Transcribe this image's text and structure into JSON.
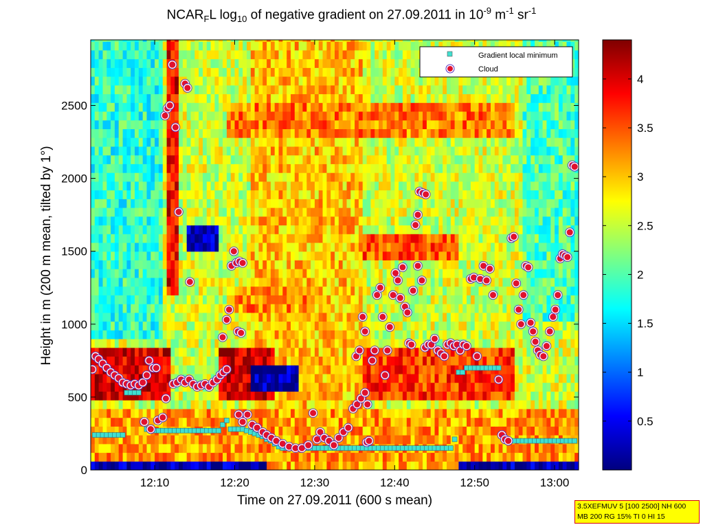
{
  "title": {
    "part1": "NCAR",
    "sub1": "F",
    "part2": "L log",
    "sub2": "10",
    "part3": " of negative gradient on 27.09.2011 in 10",
    "sup1": "-9",
    "part4": " m",
    "sup2": "-1",
    "part5": " sr",
    "sup3": "-1"
  },
  "info_box": {
    "line1": "3.5XEFMUV 5 [100 2500] NH 600",
    "line2": "MB 200 RG 15% TI 0 HI 15"
  },
  "chart_data": {
    "type": "heatmap",
    "xlabel": "Time on 27.09.2011 (600 s mean)",
    "ylabel": "Height in m (200 m mean, tilted by 1°)",
    "x_range_minutes": [
      722,
      783
    ],
    "ylim": [
      0,
      2950
    ],
    "x_ticks": [
      {
        "t": 730,
        "label": "12:10"
      },
      {
        "t": 740,
        "label": "12:20"
      },
      {
        "t": 750,
        "label": "12:30"
      },
      {
        "t": 760,
        "label": "12:40"
      },
      {
        "t": 770,
        "label": "12:50"
      },
      {
        "t": 780,
        "label": "13:00"
      }
    ],
    "y_ticks": [
      0,
      500,
      1000,
      1500,
      2000,
      2500
    ],
    "colorbar": {
      "range": [
        0,
        4.4
      ],
      "ticks": [
        0.5,
        1,
        1.5,
        2,
        2.5,
        3,
        3.5,
        4
      ],
      "colormap": "jet"
    },
    "legend": {
      "position": "top-right",
      "entries": [
        {
          "label": "Gradient local minimum",
          "marker": "square",
          "color": "#40e0d0"
        },
        {
          "label": "Cloud",
          "marker": "circle",
          "color": "#e0102e"
        }
      ]
    },
    "gradient_local_minimum": [
      {
        "t": 722.5,
        "h": 240
      },
      {
        "t": 723,
        "h": 240
      },
      {
        "t": 723.5,
        "h": 240
      },
      {
        "t": 724,
        "h": 240
      },
      {
        "t": 724.5,
        "h": 240
      },
      {
        "t": 725,
        "h": 240
      },
      {
        "t": 725.5,
        "h": 240
      },
      {
        "t": 726,
        "h": 240
      },
      {
        "t": 726.5,
        "h": 530
      },
      {
        "t": 727,
        "h": 530
      },
      {
        "t": 727.5,
        "h": 530
      },
      {
        "t": 728,
        "h": 530
      },
      {
        "t": 728.5,
        "h": 330
      },
      {
        "t": 729,
        "h": 280
      },
      {
        "t": 729.5,
        "h": 270
      },
      {
        "t": 730,
        "h": 270
      },
      {
        "t": 730.5,
        "h": 270
      },
      {
        "t": 731,
        "h": 270
      },
      {
        "t": 731.5,
        "h": 270
      },
      {
        "t": 732,
        "h": 270
      },
      {
        "t": 732.5,
        "h": 270
      },
      {
        "t": 733,
        "h": 270
      },
      {
        "t": 733.5,
        "h": 270
      },
      {
        "t": 734,
        "h": 270
      },
      {
        "t": 734.5,
        "h": 270
      },
      {
        "t": 735,
        "h": 270
      },
      {
        "t": 735.5,
        "h": 270
      },
      {
        "t": 736,
        "h": 270
      },
      {
        "t": 736.5,
        "h": 270
      },
      {
        "t": 737,
        "h": 270
      },
      {
        "t": 737.5,
        "h": 270
      },
      {
        "t": 738,
        "h": 270
      },
      {
        "t": 738.5,
        "h": 310
      },
      {
        "t": 739,
        "h": 340
      },
      {
        "t": 739.5,
        "h": 280
      },
      {
        "t": 740,
        "h": 280
      },
      {
        "t": 740.5,
        "h": 280
      },
      {
        "t": 741,
        "h": 280
      },
      {
        "t": 741.5,
        "h": 270
      },
      {
        "t": 742,
        "h": 260
      },
      {
        "t": 742.5,
        "h": 250
      },
      {
        "t": 743,
        "h": 240
      },
      {
        "t": 743.5,
        "h": 230
      },
      {
        "t": 744,
        "h": 210
      },
      {
        "t": 744.5,
        "h": 200
      },
      {
        "t": 745,
        "h": 180
      },
      {
        "t": 745.5,
        "h": 160
      },
      {
        "t": 746,
        "h": 150
      },
      {
        "t": 746.5,
        "h": 150
      },
      {
        "t": 747,
        "h": 150
      },
      {
        "t": 747.5,
        "h": 150
      },
      {
        "t": 748,
        "h": 150
      },
      {
        "t": 748.5,
        "h": 150
      },
      {
        "t": 749,
        "h": 150
      },
      {
        "t": 749.5,
        "h": 150
      },
      {
        "t": 750,
        "h": 150
      },
      {
        "t": 750.5,
        "h": 150
      },
      {
        "t": 751,
        "h": 150
      },
      {
        "t": 751.5,
        "h": 150
      },
      {
        "t": 752,
        "h": 150
      },
      {
        "t": 752.5,
        "h": 150
      },
      {
        "t": 753,
        "h": 150
      },
      {
        "t": 753.5,
        "h": 150
      },
      {
        "t": 754,
        "h": 150
      },
      {
        "t": 754.5,
        "h": 150
      },
      {
        "t": 755,
        "h": 150
      },
      {
        "t": 755.5,
        "h": 150
      },
      {
        "t": 756,
        "h": 150
      },
      {
        "t": 756.5,
        "h": 150
      },
      {
        "t": 757,
        "h": 150
      },
      {
        "t": 757.5,
        "h": 150
      },
      {
        "t": 758,
        "h": 150
      },
      {
        "t": 758.5,
        "h": 150
      },
      {
        "t": 759,
        "h": 150
      },
      {
        "t": 759.5,
        "h": 150
      },
      {
        "t": 760,
        "h": 150
      },
      {
        "t": 760.5,
        "h": 150
      },
      {
        "t": 761,
        "h": 150
      },
      {
        "t": 761.5,
        "h": 150
      },
      {
        "t": 762,
        "h": 150
      },
      {
        "t": 762.5,
        "h": 150
      },
      {
        "t": 763,
        "h": 150
      },
      {
        "t": 763.5,
        "h": 150
      },
      {
        "t": 764,
        "h": 150
      },
      {
        "t": 764.5,
        "h": 150
      },
      {
        "t": 765,
        "h": 150
      },
      {
        "t": 765.5,
        "h": 150
      },
      {
        "t": 766,
        "h": 150
      },
      {
        "t": 766.5,
        "h": 150
      },
      {
        "t": 767,
        "h": 150
      },
      {
        "t": 767.5,
        "h": 210
      },
      {
        "t": 768,
        "h": 670
      },
      {
        "t": 768.5,
        "h": 670
      },
      {
        "t": 769,
        "h": 700
      },
      {
        "t": 769.5,
        "h": 700
      },
      {
        "t": 770,
        "h": 700
      },
      {
        "t": 770.5,
        "h": 700
      },
      {
        "t": 771,
        "h": 700
      },
      {
        "t": 771.5,
        "h": 700
      },
      {
        "t": 772,
        "h": 700
      },
      {
        "t": 772.5,
        "h": 700
      },
      {
        "t": 773,
        "h": 700
      },
      {
        "t": 773.5,
        "h": 230
      },
      {
        "t": 774,
        "h": 200
      },
      {
        "t": 774.5,
        "h": 200
      },
      {
        "t": 775,
        "h": 200
      },
      {
        "t": 775.5,
        "h": 200
      },
      {
        "t": 776,
        "h": 200
      },
      {
        "t": 776.5,
        "h": 200
      },
      {
        "t": 777,
        "h": 200
      },
      {
        "t": 777.5,
        "h": 200
      },
      {
        "t": 778,
        "h": 200
      },
      {
        "t": 778.5,
        "h": 200
      },
      {
        "t": 779,
        "h": 200
      },
      {
        "t": 779.5,
        "h": 200
      },
      {
        "t": 780,
        "h": 200
      },
      {
        "t": 780.5,
        "h": 200
      },
      {
        "t": 781,
        "h": 200
      },
      {
        "t": 781.5,
        "h": 200
      },
      {
        "t": 782,
        "h": 200
      },
      {
        "t": 782.5,
        "h": 200
      }
    ],
    "cloud": [
      {
        "t": 722.2,
        "h": 690
      },
      {
        "t": 722.6,
        "h": 780
      },
      {
        "t": 723,
        "h": 760
      },
      {
        "t": 723.5,
        "h": 730
      },
      {
        "t": 724,
        "h": 700
      },
      {
        "t": 724.5,
        "h": 670
      },
      {
        "t": 725,
        "h": 650
      },
      {
        "t": 725.5,
        "h": 630
      },
      {
        "t": 726,
        "h": 600
      },
      {
        "t": 726.5,
        "h": 590
      },
      {
        "t": 727,
        "h": 580
      },
      {
        "t": 727.5,
        "h": 590
      },
      {
        "t": 728,
        "h": 580
      },
      {
        "t": 728.5,
        "h": 600
      },
      {
        "t": 729,
        "h": 650
      },
      {
        "t": 729.3,
        "h": 750
      },
      {
        "t": 729.8,
        "h": 700
      },
      {
        "t": 730.2,
        "h": 700
      },
      {
        "t": 728.7,
        "h": 330
      },
      {
        "t": 729.5,
        "h": 280
      },
      {
        "t": 730.4,
        "h": 340
      },
      {
        "t": 731,
        "h": 360
      },
      {
        "t": 731.4,
        "h": 490
      },
      {
        "t": 731.3,
        "h": 2430
      },
      {
        "t": 731.6,
        "h": 2480
      },
      {
        "t": 731.9,
        "h": 2500
      },
      {
        "t": 732.2,
        "h": 2780
      },
      {
        "t": 732.6,
        "h": 2350
      },
      {
        "t": 733,
        "h": 1770
      },
      {
        "t": 733.8,
        "h": 2650
      },
      {
        "t": 734.1,
        "h": 2620
      },
      {
        "t": 734.4,
        "h": 1290
      },
      {
        "t": 732.3,
        "h": 590
      },
      {
        "t": 732.8,
        "h": 600
      },
      {
        "t": 733.3,
        "h": 620
      },
      {
        "t": 733.8,
        "h": 600
      },
      {
        "t": 734.3,
        "h": 620
      },
      {
        "t": 734.8,
        "h": 590
      },
      {
        "t": 735.3,
        "h": 570
      },
      {
        "t": 735.8,
        "h": 580
      },
      {
        "t": 736.3,
        "h": 590
      },
      {
        "t": 736.8,
        "h": 570
      },
      {
        "t": 737.3,
        "h": 600
      },
      {
        "t": 737.8,
        "h": 620
      },
      {
        "t": 738.2,
        "h": 650
      },
      {
        "t": 738.6,
        "h": 670
      },
      {
        "t": 739,
        "h": 690
      },
      {
        "t": 738.5,
        "h": 910
      },
      {
        "t": 739,
        "h": 1030
      },
      {
        "t": 739.3,
        "h": 1100
      },
      {
        "t": 739.6,
        "h": 1400
      },
      {
        "t": 739.9,
        "h": 1500
      },
      {
        "t": 740.2,
        "h": 1420
      },
      {
        "t": 740.6,
        "h": 1430
      },
      {
        "t": 741,
        "h": 1420
      },
      {
        "t": 740.4,
        "h": 950
      },
      {
        "t": 740.8,
        "h": 940
      },
      {
        "t": 740.5,
        "h": 380
      },
      {
        "t": 741,
        "h": 330
      },
      {
        "t": 741.6,
        "h": 380
      },
      {
        "t": 742.2,
        "h": 310
      },
      {
        "t": 742.8,
        "h": 290
      },
      {
        "t": 743.5,
        "h": 260
      },
      {
        "t": 744,
        "h": 240
      },
      {
        "t": 744.6,
        "h": 220
      },
      {
        "t": 745.2,
        "h": 200
      },
      {
        "t": 746,
        "h": 180
      },
      {
        "t": 746.8,
        "h": 160
      },
      {
        "t": 747.6,
        "h": 150
      },
      {
        "t": 748.4,
        "h": 150
      },
      {
        "t": 749.2,
        "h": 170
      },
      {
        "t": 749.8,
        "h": 390
      },
      {
        "t": 750.3,
        "h": 210
      },
      {
        "t": 750.7,
        "h": 260
      },
      {
        "t": 751.2,
        "h": 220
      },
      {
        "t": 751.8,
        "h": 200
      },
      {
        "t": 752.4,
        "h": 170
      },
      {
        "t": 753,
        "h": 220
      },
      {
        "t": 753.6,
        "h": 260
      },
      {
        "t": 754.2,
        "h": 290
      },
      {
        "t": 754.8,
        "h": 420
      },
      {
        "t": 755.3,
        "h": 450
      },
      {
        "t": 755.8,
        "h": 490
      },
      {
        "t": 756.3,
        "h": 530
      },
      {
        "t": 756.6,
        "h": 450
      },
      {
        "t": 755.2,
        "h": 780
      },
      {
        "t": 755.6,
        "h": 820
      },
      {
        "t": 756,
        "h": 1050
      },
      {
        "t": 756.3,
        "h": 950
      },
      {
        "t": 756.5,
        "h": 190
      },
      {
        "t": 756.8,
        "h": 200
      },
      {
        "t": 757.2,
        "h": 750
      },
      {
        "t": 757.5,
        "h": 820
      },
      {
        "t": 757.8,
        "h": 1200
      },
      {
        "t": 758.2,
        "h": 1250
      },
      {
        "t": 758.5,
        "h": 1050
      },
      {
        "t": 758.8,
        "h": 650
      },
      {
        "t": 759.1,
        "h": 820
      },
      {
        "t": 759.4,
        "h": 980
      },
      {
        "t": 759.8,
        "h": 1200
      },
      {
        "t": 760.1,
        "h": 1350
      },
      {
        "t": 760.4,
        "h": 1300
      },
      {
        "t": 760.7,
        "h": 1180
      },
      {
        "t": 761,
        "h": 1390
      },
      {
        "t": 761.3,
        "h": 1120
      },
      {
        "t": 761.6,
        "h": 1080
      },
      {
        "t": 761.8,
        "h": 870
      },
      {
        "t": 762.1,
        "h": 860
      },
      {
        "t": 762.3,
        "h": 1230
      },
      {
        "t": 762.6,
        "h": 1680
      },
      {
        "t": 762.9,
        "h": 1750
      },
      {
        "t": 763.1,
        "h": 1910
      },
      {
        "t": 763.5,
        "h": 1900
      },
      {
        "t": 763.9,
        "h": 1890
      },
      {
        "t": 762.9,
        "h": 1400
      },
      {
        "t": 763.4,
        "h": 1300
      },
      {
        "t": 763.8,
        "h": 840
      },
      {
        "t": 764.2,
        "h": 860
      },
      {
        "t": 764.6,
        "h": 860
      },
      {
        "t": 765,
        "h": 900
      },
      {
        "t": 765.4,
        "h": 820
      },
      {
        "t": 765.8,
        "h": 800
      },
      {
        "t": 766.2,
        "h": 780
      },
      {
        "t": 766.6,
        "h": 860
      },
      {
        "t": 767,
        "h": 870
      },
      {
        "t": 767.4,
        "h": 850
      },
      {
        "t": 767.8,
        "h": 860
      },
      {
        "t": 768.2,
        "h": 820
      },
      {
        "t": 768.6,
        "h": 860
      },
      {
        "t": 769,
        "h": 850
      },
      {
        "t": 769.5,
        "h": 1310
      },
      {
        "t": 769.9,
        "h": 1320
      },
      {
        "t": 770.3,
        "h": 780
      },
      {
        "t": 770.7,
        "h": 1310
      },
      {
        "t": 771.1,
        "h": 1400
      },
      {
        "t": 771.5,
        "h": 1300
      },
      {
        "t": 771.9,
        "h": 1380
      },
      {
        "t": 772.3,
        "h": 1200
      },
      {
        "t": 773,
        "h": 620
      },
      {
        "t": 773.4,
        "h": 240
      },
      {
        "t": 773.8,
        "h": 210
      },
      {
        "t": 774.2,
        "h": 200
      },
      {
        "t": 774.6,
        "h": 1590
      },
      {
        "t": 774.9,
        "h": 1600
      },
      {
        "t": 775.2,
        "h": 1280
      },
      {
        "t": 775.5,
        "h": 1100
      },
      {
        "t": 775.8,
        "h": 1000
      },
      {
        "t": 776.1,
        "h": 1200
      },
      {
        "t": 776.4,
        "h": 1400
      },
      {
        "t": 776.7,
        "h": 1390
      },
      {
        "t": 777,
        "h": 1010
      },
      {
        "t": 777.3,
        "h": 950
      },
      {
        "t": 777.6,
        "h": 880
      },
      {
        "t": 777.9,
        "h": 820
      },
      {
        "t": 778.2,
        "h": 790
      },
      {
        "t": 778.6,
        "h": 780
      },
      {
        "t": 779,
        "h": 850
      },
      {
        "t": 779.4,
        "h": 950
      },
      {
        "t": 779.8,
        "h": 1050
      },
      {
        "t": 780.1,
        "h": 1100
      },
      {
        "t": 780.4,
        "h": 1200
      },
      {
        "t": 780.7,
        "h": 1450
      },
      {
        "t": 781,
        "h": 1480
      },
      {
        "t": 781.3,
        "h": 1470
      },
      {
        "t": 781.6,
        "h": 1460
      },
      {
        "t": 781.9,
        "h": 1630
      },
      {
        "t": 782.2,
        "h": 2090
      },
      {
        "t": 782.5,
        "h": 2080
      }
    ]
  }
}
